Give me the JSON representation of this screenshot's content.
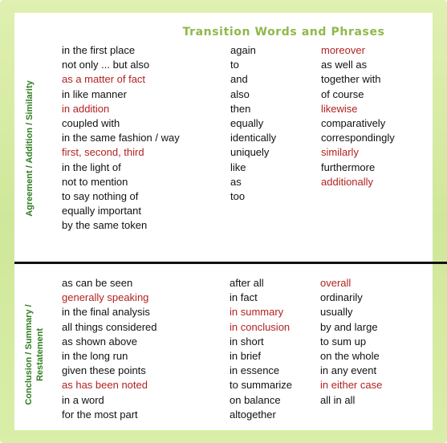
{
  "title": "Transition Words and Phrases",
  "colors": {
    "highlight": "#b32222",
    "title": "#8fb84a",
    "side_label": "#2e7d1f"
  },
  "sections": [
    {
      "label": "Agreement / Addition / Similarity",
      "columns": [
        [
          {
            "text": "in the first place",
            "hl": false
          },
          {
            "text": "not only ... but also",
            "hl": false
          },
          {
            "text": "as a matter of fact",
            "hl": true
          },
          {
            "text": "in like manner",
            "hl": false
          },
          {
            "text": "in addition",
            "hl": true
          },
          {
            "text": "coupled with",
            "hl": false
          },
          {
            "text": "in the same fashion / way",
            "hl": false
          },
          {
            "text": "first, second, third",
            "hl": true
          },
          {
            "text": "in the light of",
            "hl": false
          },
          {
            "text": "not to mention",
            "hl": false
          },
          {
            "text": "to say nothing of",
            "hl": false
          },
          {
            "text": "equally important",
            "hl": false
          },
          {
            "text": "by the same token",
            "hl": false
          }
        ],
        [
          {
            "text": "again",
            "hl": false
          },
          {
            "text": "to",
            "hl": false
          },
          {
            "text": "and",
            "hl": false
          },
          {
            "text": "also",
            "hl": false
          },
          {
            "text": "then",
            "hl": false
          },
          {
            "text": "equally",
            "hl": false
          },
          {
            "text": "identically",
            "hl": false
          },
          {
            "text": "uniquely",
            "hl": false
          },
          {
            "text": "like",
            "hl": false
          },
          {
            "text": "as",
            "hl": false
          },
          {
            "text": "too",
            "hl": false
          }
        ],
        [
          {
            "text": "moreover",
            "hl": true
          },
          {
            "text": "as well as",
            "hl": false
          },
          {
            "text": "together with",
            "hl": false
          },
          {
            "text": "of course",
            "hl": false
          },
          {
            "text": "likewise",
            "hl": true
          },
          {
            "text": "comparatively",
            "hl": false
          },
          {
            "text": "correspondingly",
            "hl": false
          },
          {
            "text": "similarly",
            "hl": true
          },
          {
            "text": "furthermore",
            "hl": false
          },
          {
            "text": "additionally",
            "hl": true
          }
        ]
      ]
    },
    {
      "label_lines": [
        "Conclusion / Summary /",
        "Restatement"
      ],
      "columns": [
        [
          {
            "text": "as can be seen",
            "hl": false
          },
          {
            "text": "generally speaking",
            "hl": true
          },
          {
            "text": "in the final analysis",
            "hl": false
          },
          {
            "text": "all things considered",
            "hl": false
          },
          {
            "text": "as shown above",
            "hl": false
          },
          {
            "text": "in the long run",
            "hl": false
          },
          {
            "text": "given these points",
            "hl": false
          },
          {
            "text": "as has been noted",
            "hl": true
          },
          {
            "text": "in a word",
            "hl": false
          },
          {
            "text": "for the most part",
            "hl": false
          }
        ],
        [
          {
            "text": "after all",
            "hl": false
          },
          {
            "text": "in fact",
            "hl": false
          },
          {
            "text": "in summary",
            "hl": true
          },
          {
            "text": "in conclusion",
            "hl": true
          },
          {
            "text": "in short",
            "hl": false
          },
          {
            "text": "in brief",
            "hl": false
          },
          {
            "text": "in essence",
            "hl": false
          },
          {
            "text": "to summarize",
            "hl": false
          },
          {
            "text": "on balance",
            "hl": false
          },
          {
            "text": "altogether",
            "hl": false
          }
        ],
        [
          {
            "text": "overall",
            "hl": true
          },
          {
            "text": "ordinarily",
            "hl": false
          },
          {
            "text": "usually",
            "hl": false
          },
          {
            "text": "by and large",
            "hl": false
          },
          {
            "text": "to sum up",
            "hl": false
          },
          {
            "text": "on the whole",
            "hl": false
          },
          {
            "text": "in any event",
            "hl": false
          },
          {
            "text": "in either case",
            "hl": true
          },
          {
            "text": "all in all",
            "hl": false
          }
        ]
      ]
    }
  ]
}
